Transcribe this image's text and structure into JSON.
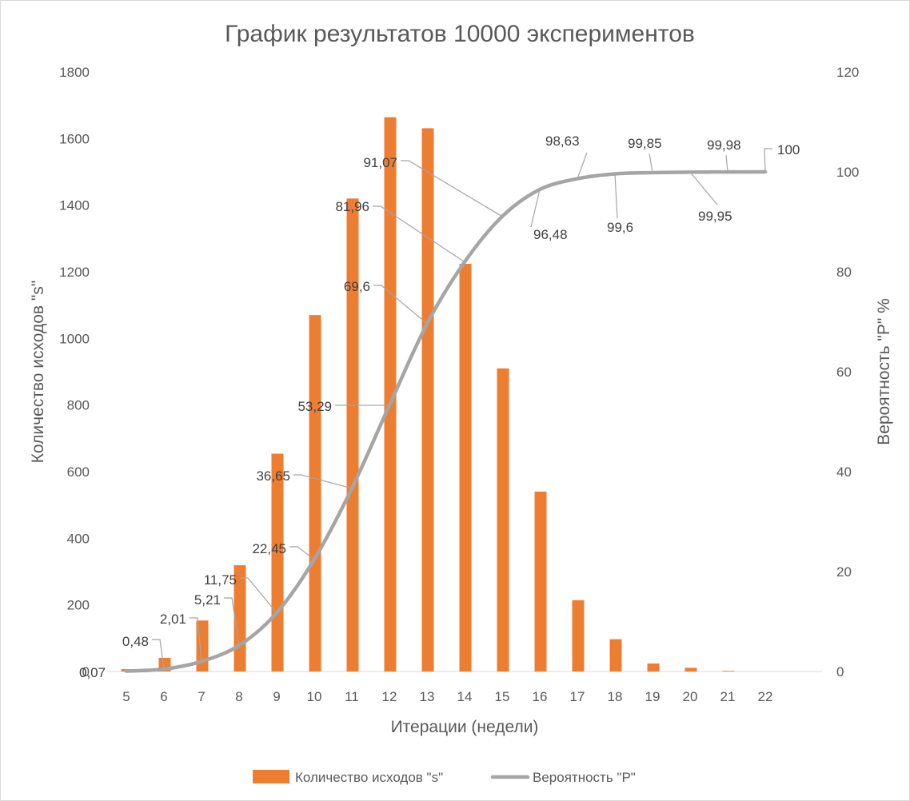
{
  "chart_data": {
    "type": "bar",
    "title": "График результатов 10000 экспериментов",
    "xlabel": "Итерации (недели)",
    "ylabel": "Количество исходов \"s\"",
    "y2label": "Вероятность \"P\" %",
    "categories": [
      "5",
      "6",
      "7",
      "8",
      "9",
      "10",
      "11",
      "12",
      "13",
      "14",
      "15",
      "16",
      "17",
      "18",
      "19",
      "20",
      "21",
      "22"
    ],
    "ylim": [
      0,
      1800
    ],
    "yticks": [
      "0",
      "200",
      "400",
      "600",
      "800",
      "1000",
      "1200",
      "1400",
      "1600",
      "1800"
    ],
    "y2lim": [
      0,
      120
    ],
    "y2ticks": [
      "0",
      "20",
      "40",
      "60",
      "80",
      "100",
      "120"
    ],
    "grid": false,
    "legend_position": "bottom",
    "series": [
      {
        "name": "Количество исходов \"s\"",
        "type": "bar",
        "axis": "left",
        "color": "#ed7d31",
        "values": [
          7,
          41,
          153,
          319,
          654,
          1070,
          1420,
          1664,
          1631,
          1224,
          910,
          540,
          214,
          97,
          24,
          11,
          2,
          0
        ]
      },
      {
        "name": "Вероятность \"P\"",
        "type": "line",
        "axis": "right",
        "color": "#a5a5a5",
        "values": [
          0.07,
          0.48,
          2.01,
          5.21,
          11.75,
          22.45,
          36.65,
          53.29,
          69.6,
          81.96,
          91.07,
          96.48,
          98.63,
          99.6,
          99.85,
          99.95,
          99.98,
          100
        ],
        "labels": [
          "0,07",
          "0,48",
          "2,01",
          "5,21",
          "11,75",
          "22,45",
          "36,65",
          "53,29",
          "69,6",
          "81,96",
          "91,07",
          "96,48",
          "98,63",
          "99,6",
          "99,85",
          "99,95",
          "99,98",
          "100"
        ]
      }
    ]
  }
}
